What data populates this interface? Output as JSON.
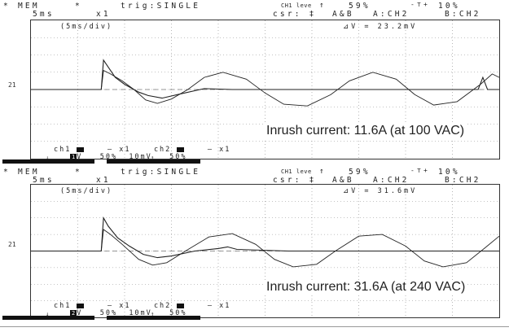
{
  "scopes": [
    {
      "header_line1_left": "MEM",
      "header_line1_mid": "trig:SINGLE",
      "header_ch1_level": "CH1 leve",
      "header_level_pct": "59%",
      "header_pretrig": "10%",
      "header_line2_left": "5ms",
      "header_line2_mid": "x1",
      "header_csr": "csr: ‡",
      "header_ab": "A&B",
      "header_a": "A:CH2",
      "header_b": "B:CH2",
      "div_label": "(5ms/div)",
      "delta_v": "⊿V = 23.2mV",
      "ref_label": "21",
      "annotation": "Inrush current: 11.6A (at 100 VAC)",
      "ch1_label": "ch1",
      "ch1_badge": "1",
      "ch1_coupling": "V",
      "ch1_probe": "— x1",
      "ch1_scale": "50%",
      "ch2_label": "ch2",
      "ch2_scale": "10mV",
      "ch2_probe": "— x1",
      "ch2_pct": "50%"
    },
    {
      "header_line1_left": "MEM",
      "header_line1_mid": "trig:SINGLE",
      "header_ch1_level": "CH1 leve",
      "header_level_pct": "59%",
      "header_pretrig": "10%",
      "header_line2_left": "5ms",
      "header_line2_mid": "x1",
      "header_csr": "csr: ‡",
      "header_ab": "A&B",
      "header_a": "A:CH2",
      "header_b": "B:CH2",
      "div_label": "(5ms/div)",
      "delta_v": "⊿V = 31.6mV",
      "ref_label": "21",
      "annotation": "Inrush current: 31.6A (at 240 VAC)",
      "ch1_label": "ch1",
      "ch1_badge": "2",
      "ch1_coupling": "V",
      "ch1_probe": "— x1",
      "ch1_scale": "50%",
      "ch2_label": "ch2",
      "ch2_scale": "10mV",
      "ch2_probe": "— x1",
      "ch2_pct": "50%"
    }
  ],
  "chart_data": [
    {
      "type": "line",
      "title": "",
      "xlabel": "",
      "ylabel": "",
      "x_divisions": 10,
      "y_divisions": 8,
      "x_unit_per_div": "5ms",
      "grid": true,
      "xlim": [
        0,
        10
      ],
      "ylim": [
        -4,
        4
      ],
      "series": [
        {
          "kind": "inrush-current",
          "points": [
            [
              0,
              0
            ],
            [
              1.5,
              0
            ],
            [
              1.55,
              1.7
            ],
            [
              1.65,
              1.3
            ],
            [
              1.8,
              0.7
            ],
            [
              2.0,
              0.3
            ],
            [
              2.3,
              -0.15
            ],
            [
              2.5,
              -0.35
            ],
            [
              2.8,
              -0.5
            ],
            [
              3.2,
              -0.25
            ],
            [
              3.7,
              0.05
            ],
            [
              4.3,
              0
            ],
            [
              5.5,
              0
            ],
            [
              6,
              0
            ],
            [
              7.5,
              0
            ],
            [
              9.55,
              0
            ],
            [
              9.65,
              0.7
            ],
            [
              9.75,
              0
            ],
            [
              10,
              0
            ]
          ]
        },
        {
          "kind": "ac-voltage",
          "points": [
            [
              0,
              0
            ],
            [
              1.5,
              0
            ],
            [
              1.55,
              1.1
            ],
            [
              1.7,
              0.9
            ],
            [
              1.95,
              0.5
            ],
            [
              2.2,
              0
            ],
            [
              2.45,
              -0.6
            ],
            [
              2.7,
              -0.8
            ],
            [
              3.0,
              -0.55
            ],
            [
              3.35,
              0
            ],
            [
              3.7,
              0.7
            ],
            [
              4.1,
              1.0
            ],
            [
              4.6,
              0.6
            ],
            [
              5.0,
              -0.2
            ],
            [
              5.4,
              -0.85
            ],
            [
              5.9,
              -0.95
            ],
            [
              6.4,
              -0.3
            ],
            [
              6.8,
              0.5
            ],
            [
              7.3,
              1.0
            ],
            [
              7.8,
              0.6
            ],
            [
              8.2,
              -0.3
            ],
            [
              8.6,
              -0.9
            ],
            [
              9.1,
              -0.7
            ],
            [
              9.6,
              0.3
            ],
            [
              9.85,
              0.9
            ],
            [
              10,
              0.7
            ]
          ]
        }
      ]
    },
    {
      "type": "line",
      "title": "",
      "xlabel": "",
      "ylabel": "",
      "x_divisions": 10,
      "y_divisions": 8,
      "x_unit_per_div": "5ms",
      "grid": true,
      "xlim": [
        0,
        10
      ],
      "ylim": [
        -4,
        4
      ],
      "series": [
        {
          "kind": "inrush-current",
          "points": [
            [
              0,
              0
            ],
            [
              1.5,
              0
            ],
            [
              1.55,
              2.0
            ],
            [
              1.65,
              1.5
            ],
            [
              1.85,
              0.8
            ],
            [
              2.1,
              0.3
            ],
            [
              2.4,
              -0.2
            ],
            [
              2.7,
              -0.4
            ],
            [
              3.0,
              -0.3
            ],
            [
              3.5,
              0
            ],
            [
              4.0,
              0.15
            ],
            [
              4.2,
              0.25
            ],
            [
              4.4,
              0.1
            ],
            [
              5.5,
              0
            ],
            [
              10,
              0
            ]
          ]
        },
        {
          "kind": "ac-voltage",
          "points": [
            [
              0,
              0
            ],
            [
              1.5,
              0
            ],
            [
              1.55,
              1.3
            ],
            [
              1.7,
              1.0
            ],
            [
              1.95,
              0.4
            ],
            [
              2.3,
              -0.5
            ],
            [
              2.6,
              -0.85
            ],
            [
              2.9,
              -0.7
            ],
            [
              3.3,
              0
            ],
            [
              3.8,
              0.85
            ],
            [
              4.3,
              1.05
            ],
            [
              4.8,
              0.4
            ],
            [
              5.2,
              -0.5
            ],
            [
              5.6,
              -0.95
            ],
            [
              6.1,
              -0.8
            ],
            [
              6.5,
              0
            ],
            [
              7.0,
              0.9
            ],
            [
              7.5,
              1.0
            ],
            [
              8.0,
              0.3
            ],
            [
              8.4,
              -0.6
            ],
            [
              8.8,
              -0.95
            ],
            [
              9.3,
              -0.7
            ],
            [
              9.7,
              0.2
            ],
            [
              10,
              0.9
            ]
          ]
        }
      ]
    }
  ]
}
